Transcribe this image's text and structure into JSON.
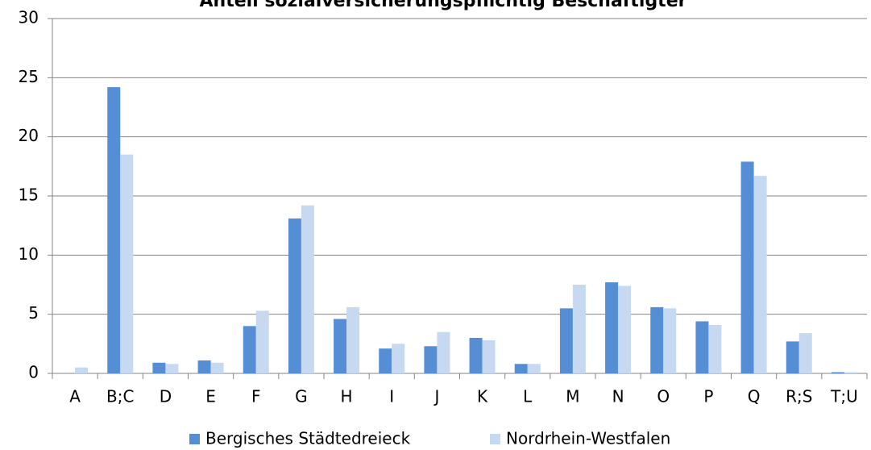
{
  "chart_data": {
    "type": "bar",
    "title": "Anteil sozialversicherungspflichtig Beschäftigter",
    "categories": [
      "A",
      "B;C",
      "D",
      "E",
      "F",
      "G",
      "H",
      "I",
      "J",
      "K",
      "L",
      "M",
      "N",
      "O",
      "P",
      "Q",
      "R;S",
      "T;U"
    ],
    "series": [
      {
        "name": "Bergisches Städtedreieck",
        "color": "#558ed5",
        "values": [
          0,
          24.2,
          0.9,
          1.1,
          4.0,
          13.1,
          4.6,
          2.1,
          2.3,
          3.0,
          0.8,
          5.5,
          7.7,
          5.6,
          4.4,
          17.9,
          2.7,
          0.1
        ]
      },
      {
        "name": "Nordrhein-Westfalen",
        "color": "#c6d9f1",
        "values": [
          0.5,
          18.5,
          0.8,
          0.9,
          5.3,
          14.2,
          5.6,
          2.5,
          3.5,
          2.8,
          0.8,
          7.5,
          7.4,
          5.5,
          4.1,
          16.7,
          3.4,
          0.1
        ]
      }
    ],
    "ylim": [
      0,
      30
    ],
    "yticks": [
      0,
      5,
      10,
      15,
      20,
      25,
      30
    ],
    "grid": true,
    "legend": "bottom"
  }
}
